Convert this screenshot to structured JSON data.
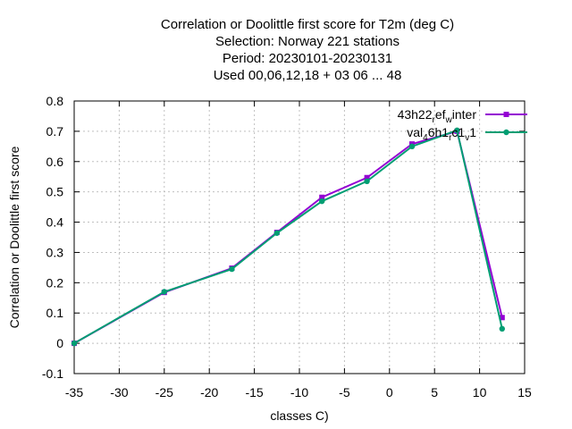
{
  "chart_data": {
    "type": "line",
    "title_lines": [
      "Correlation or Doolittle first score  for T2m (deg C)",
      "Selection: Norway    221 stations",
      "Period: 20230101-20230131",
      "Used  00,06,12,18  + 03 06 ... 48"
    ],
    "xlabel": "classes C)",
    "ylabel": "Correlation or Doolittle first score",
    "xlim": [
      -35,
      15
    ],
    "ylim": [
      -0.1,
      0.8
    ],
    "xticks": [
      -35,
      -30,
      -25,
      -20,
      -15,
      -10,
      -5,
      0,
      5,
      10,
      15
    ],
    "yticks": [
      -0.1,
      0,
      0.1,
      0.2,
      0.3,
      0.4,
      0.5,
      0.6,
      0.7,
      0.8
    ],
    "xtick_labels": [
      "-35",
      "-30",
      "-25",
      "-20",
      "-15",
      "-10",
      "-5",
      "0",
      "5",
      "10",
      "15"
    ],
    "ytick_labels": [
      "-0.1",
      "0",
      "0.1",
      "0.2",
      "0.3",
      "0.4",
      "0.5",
      "0.6",
      "0.7",
      "0.8"
    ],
    "grid": true,
    "legend_position": "top-right",
    "series": [
      {
        "legend": {
          "parts": [
            {
              "text": "43h22",
              "sub": false
            },
            {
              "text": "r",
              "sub": true
            },
            {
              "text": "ef",
              "sub": false
            },
            {
              "text": "w",
              "sub": true
            },
            {
              "text": "inter",
              "sub": false
            }
          ]
        },
        "color": "#9400d3",
        "marker": "square",
        "x": [
          -35,
          -25,
          -17.5,
          -12.5,
          -7.5,
          -2.5,
          2.5,
          7.5,
          12.5
        ],
        "y": [
          0.0,
          0.168,
          0.248,
          0.366,
          0.482,
          0.547,
          0.658,
          0.7,
          0.085
        ]
      },
      {
        "legend": {
          "parts": [
            {
              "text": "val",
              "sub": false
            },
            {
              "text": "4",
              "sub": true
            },
            {
              "text": "6h1",
              "sub": false
            },
            {
              "text": "r",
              "sub": true
            },
            {
              "text": "c1",
              "sub": false
            },
            {
              "text": "v",
              "sub": true
            },
            {
              "text": "1",
              "sub": false
            }
          ]
        },
        "color": "#009e73",
        "marker": "circle",
        "x": [
          -35,
          -25,
          -17.5,
          -12.5,
          -7.5,
          -2.5,
          2.5,
          7.5,
          12.5
        ],
        "y": [
          0.0,
          0.17,
          0.245,
          0.364,
          0.469,
          0.535,
          0.65,
          0.703,
          0.048
        ]
      }
    ]
  }
}
